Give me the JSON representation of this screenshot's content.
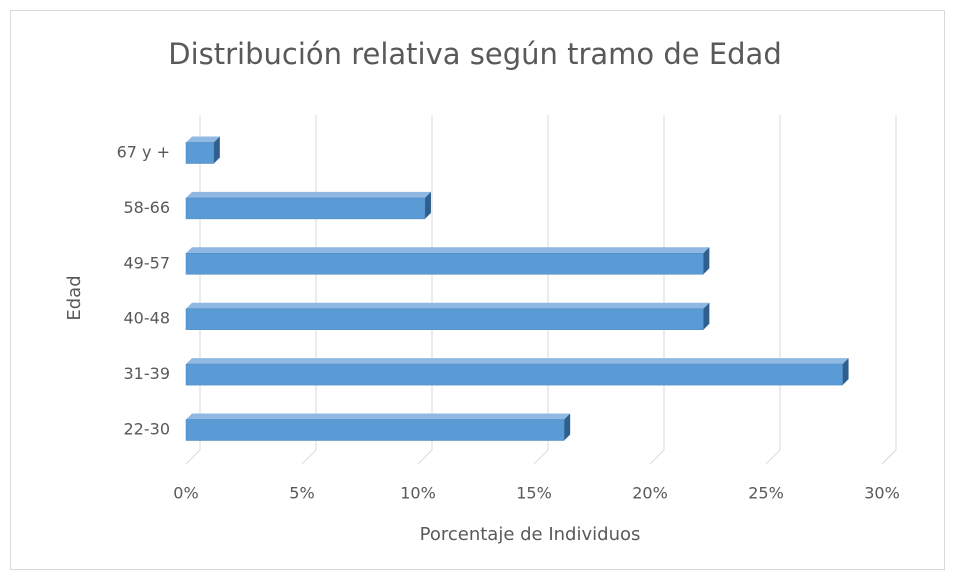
{
  "chart_data": {
    "type": "bar3d_horizontal",
    "title": "Distribución relativa según tramo de Edad",
    "x_label": "Porcentaje de Individuos",
    "y_label": "Edad",
    "categories": [
      "22-30",
      "31-39",
      "40-48",
      "49-57",
      "58-66",
      "67 y +"
    ],
    "values": [
      16.3,
      28.3,
      22.3,
      22.3,
      10.3,
      1.2
    ],
    "color": "#5b9bd5",
    "xlim": [
      0,
      30
    ],
    "xticks": [
      {
        "value": 0,
        "label": "0%"
      },
      {
        "value": 5,
        "label": "5%"
      },
      {
        "value": 10,
        "label": "10%"
      },
      {
        "value": 15,
        "label": "15%"
      },
      {
        "value": 20,
        "label": "20%"
      },
      {
        "value": 25,
        "label": "25%"
      },
      {
        "value": 30,
        "label": "30%"
      }
    ],
    "grid": true
  }
}
